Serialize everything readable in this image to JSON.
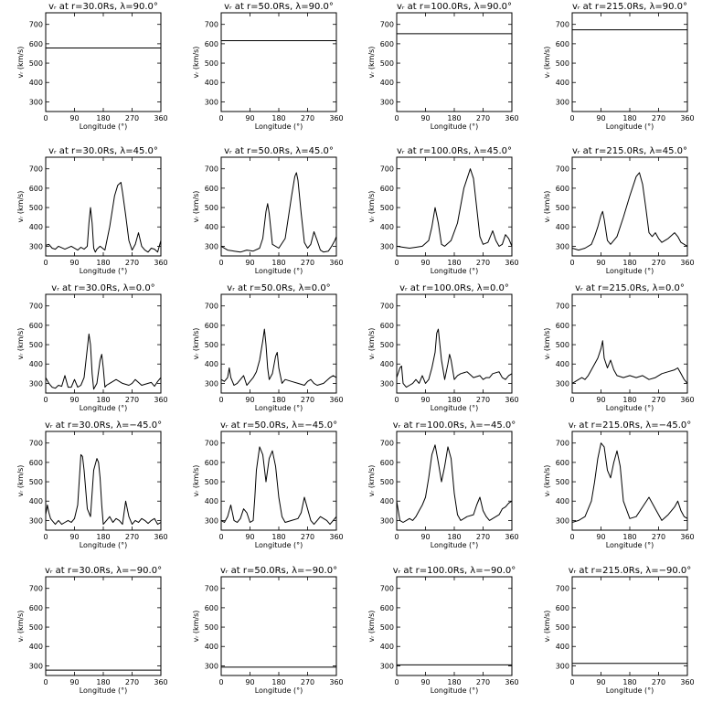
{
  "figure": {
    "xlabel": "Longitude (°)",
    "ylabel": "vᵣ (km/s)",
    "xticks": [
      0,
      90,
      180,
      270,
      360
    ],
    "yticks": [
      300,
      400,
      500,
      600,
      700
    ],
    "xlim": [
      0,
      360
    ],
    "ylim": [
      250,
      760
    ]
  },
  "chart_data": [
    {
      "type": "line",
      "title": "vᵣ at r=30.0Rs, λ=90.0°",
      "x": [
        0,
        360
      ],
      "y": [
        578,
        578
      ]
    },
    {
      "type": "line",
      "title": "vᵣ at r=50.0Rs, λ=90.0°",
      "x": [
        0,
        360
      ],
      "y": [
        616,
        616
      ]
    },
    {
      "type": "line",
      "title": "vᵣ at r=100.0Rs, λ=90.0°",
      "x": [
        0,
        360
      ],
      "y": [
        652,
        652
      ]
    },
    {
      "type": "line",
      "title": "vᵣ at r=215.0Rs, λ=90.0°",
      "x": [
        0,
        360
      ],
      "y": [
        672,
        672
      ]
    },
    {
      "type": "line",
      "title": "vᵣ at r=30.0Rs, λ=45.0°",
      "x": [
        0,
        10,
        20,
        30,
        40,
        60,
        80,
        100,
        110,
        120,
        130,
        135,
        140,
        145,
        150,
        155,
        160,
        170,
        185,
        200,
        215,
        225,
        235,
        240,
        250,
        260,
        270,
        280,
        290,
        300,
        310,
        320,
        330,
        340,
        350,
        360
      ],
      "y": [
        305,
        310,
        290,
        285,
        300,
        285,
        300,
        280,
        295,
        285,
        300,
        420,
        500,
        420,
        290,
        270,
        285,
        300,
        280,
        400,
        560,
        615,
        630,
        580,
        460,
        330,
        280,
        310,
        370,
        300,
        280,
        270,
        290,
        285,
        270,
        330
      ]
    },
    {
      "type": "line",
      "title": "vᵣ at r=50.0Rs, λ=45.0°",
      "x": [
        0,
        20,
        40,
        60,
        80,
        100,
        120,
        130,
        140,
        145,
        150,
        160,
        180,
        200,
        220,
        230,
        235,
        240,
        250,
        260,
        270,
        280,
        290,
        300,
        310,
        320,
        335,
        345,
        355,
        360
      ],
      "y": [
        300,
        280,
        275,
        270,
        280,
        275,
        290,
        340,
        480,
        520,
        470,
        310,
        290,
        340,
        560,
        660,
        680,
        640,
        470,
        320,
        290,
        310,
        375,
        330,
        280,
        270,
        275,
        300,
        330,
        350
      ]
    },
    {
      "type": "line",
      "title": "vᵣ at r=100.0Rs, λ=45.0°",
      "x": [
        0,
        20,
        40,
        60,
        80,
        100,
        110,
        120,
        130,
        140,
        150,
        170,
        190,
        210,
        230,
        240,
        250,
        260,
        270,
        285,
        300,
        310,
        320,
        330,
        340,
        350,
        360
      ],
      "y": [
        300,
        295,
        290,
        295,
        300,
        330,
        400,
        500,
        420,
        310,
        300,
        330,
        420,
        600,
        700,
        650,
        500,
        350,
        310,
        320,
        380,
        330,
        300,
        310,
        360,
        340,
        300
      ]
    },
    {
      "type": "line",
      "title": "vᵣ at r=215.0Rs, λ=45.0°",
      "x": [
        0,
        20,
        40,
        60,
        70,
        80,
        90,
        95,
        100,
        110,
        120,
        140,
        160,
        180,
        200,
        210,
        220,
        230,
        240,
        250,
        260,
        270,
        280,
        300,
        320,
        330,
        340,
        360
      ],
      "y": [
        290,
        280,
        290,
        310,
        350,
        400,
        460,
        480,
        440,
        330,
        310,
        350,
        450,
        560,
        660,
        680,
        620,
        500,
        370,
        350,
        370,
        340,
        320,
        340,
        370,
        350,
        320,
        300
      ]
    },
    {
      "type": "line",
      "title": "vᵣ at r=30.0Rs, λ=0.0°",
      "x": [
        0,
        10,
        20,
        30,
        40,
        50,
        60,
        70,
        80,
        90,
        100,
        110,
        120,
        130,
        135,
        140,
        145,
        150,
        160,
        170,
        175,
        180,
        185,
        190,
        200,
        220,
        240,
        260,
        270,
        280,
        300,
        320,
        330,
        340,
        350,
        360
      ],
      "y": [
        330,
        300,
        280,
        275,
        290,
        285,
        340,
        280,
        280,
        320,
        280,
        290,
        330,
        480,
        555,
        500,
        350,
        270,
        300,
        420,
        450,
        380,
        280,
        290,
        300,
        320,
        300,
        290,
        300,
        320,
        290,
        300,
        305,
        285,
        310,
        330
      ]
    },
    {
      "type": "line",
      "title": "vᵣ at r=50.0Rs, λ=0.0°",
      "x": [
        0,
        10,
        20,
        25,
        30,
        40,
        50,
        60,
        70,
        80,
        90,
        100,
        110,
        120,
        130,
        135,
        140,
        145,
        150,
        160,
        170,
        175,
        180,
        190,
        200,
        220,
        240,
        260,
        270,
        280,
        290,
        300,
        320,
        340,
        350,
        360
      ],
      "y": [
        320,
        310,
        330,
        380,
        330,
        290,
        300,
        320,
        340,
        290,
        310,
        330,
        360,
        420,
        520,
        580,
        500,
        380,
        320,
        350,
        440,
        460,
        380,
        300,
        320,
        310,
        300,
        290,
        310,
        320,
        300,
        290,
        300,
        330,
        340,
        330
      ]
    },
    {
      "type": "line",
      "title": "vᵣ at r=100.0Rs, λ=0.0°",
      "x": [
        0,
        10,
        15,
        20,
        30,
        40,
        50,
        60,
        70,
        80,
        90,
        100,
        110,
        120,
        125,
        130,
        140,
        150,
        160,
        165,
        170,
        180,
        190,
        200,
        220,
        240,
        260,
        270,
        280,
        290,
        300,
        320,
        330,
        340,
        350,
        360
      ],
      "y": [
        330,
        380,
        390,
        300,
        280,
        290,
        300,
        320,
        300,
        340,
        300,
        320,
        380,
        460,
        560,
        580,
        420,
        320,
        400,
        450,
        420,
        320,
        340,
        350,
        360,
        330,
        340,
        320,
        330,
        330,
        350,
        360,
        330,
        320,
        340,
        350
      ]
    },
    {
      "type": "line",
      "title": "vᵣ at r=215.0Rs, λ=0.0°",
      "x": [
        0,
        10,
        20,
        30,
        40,
        50,
        60,
        70,
        80,
        90,
        95,
        100,
        110,
        115,
        120,
        130,
        140,
        160,
        180,
        200,
        220,
        240,
        260,
        280,
        300,
        320,
        330,
        340,
        350,
        360
      ],
      "y": [
        300,
        310,
        320,
        330,
        320,
        340,
        370,
        400,
        430,
        480,
        520,
        430,
        380,
        400,
        420,
        370,
        340,
        330,
        340,
        330,
        340,
        320,
        330,
        350,
        360,
        370,
        380,
        350,
        320,
        300
      ]
    },
    {
      "type": "line",
      "title": "vᵣ at r=30.0Rs, λ=−45.0°",
      "x": [
        0,
        5,
        10,
        15,
        20,
        30,
        40,
        50,
        60,
        70,
        80,
        90,
        100,
        110,
        115,
        120,
        130,
        140,
        150,
        160,
        165,
        170,
        175,
        180,
        190,
        200,
        210,
        220,
        230,
        240,
        250,
        260,
        270,
        280,
        290,
        300,
        310,
        320,
        330,
        340,
        350,
        360
      ],
      "y": [
        330,
        380,
        340,
        310,
        300,
        280,
        300,
        280,
        290,
        300,
        290,
        310,
        380,
        640,
        630,
        560,
        360,
        320,
        560,
        620,
        600,
        520,
        380,
        280,
        300,
        320,
        290,
        310,
        300,
        280,
        400,
        320,
        280,
        300,
        290,
        310,
        300,
        285,
        300,
        310,
        280,
        290
      ]
    },
    {
      "type": "line",
      "title": "vᵣ at r=50.0Rs, λ=−45.0°",
      "x": [
        0,
        10,
        20,
        30,
        40,
        50,
        60,
        70,
        80,
        90,
        100,
        105,
        110,
        120,
        130,
        140,
        150,
        160,
        170,
        180,
        190,
        200,
        220,
        240,
        250,
        260,
        270,
        280,
        290,
        300,
        310,
        320,
        330,
        340,
        350,
        360
      ],
      "y": [
        300,
        290,
        320,
        380,
        300,
        290,
        310,
        360,
        340,
        290,
        300,
        420,
        560,
        680,
        640,
        500,
        620,
        660,
        580,
        420,
        320,
        290,
        300,
        310,
        340,
        420,
        360,
        300,
        280,
        300,
        320,
        310,
        300,
        280,
        300,
        320
      ]
    },
    {
      "type": "line",
      "title": "vᵣ at r=100.0Rs, λ=−45.0°",
      "x": [
        0,
        10,
        20,
        30,
        40,
        50,
        60,
        70,
        80,
        90,
        100,
        110,
        120,
        130,
        140,
        150,
        160,
        170,
        180,
        190,
        200,
        220,
        240,
        250,
        260,
        270,
        280,
        290,
        300,
        310,
        320,
        330,
        340,
        350,
        360
      ],
      "y": [
        400,
        300,
        290,
        300,
        310,
        300,
        320,
        350,
        380,
        420,
        520,
        640,
        690,
        600,
        500,
        580,
        680,
        620,
        440,
        330,
        300,
        320,
        330,
        380,
        420,
        350,
        320,
        300,
        310,
        320,
        330,
        360,
        370,
        390,
        400
      ]
    },
    {
      "type": "line",
      "title": "vᵣ at r=215.0Rs, λ=−45.0°",
      "x": [
        0,
        20,
        40,
        60,
        70,
        80,
        90,
        100,
        110,
        120,
        130,
        140,
        150,
        160,
        180,
        200,
        220,
        240,
        260,
        280,
        300,
        320,
        330,
        340,
        350,
        360
      ],
      "y": [
        290,
        300,
        320,
        400,
        500,
        620,
        700,
        680,
        560,
        520,
        600,
        660,
        580,
        400,
        310,
        320,
        370,
        420,
        360,
        300,
        330,
        370,
        400,
        350,
        320,
        310
      ]
    },
    {
      "type": "line",
      "title": "vᵣ at r=30.0Rs, λ=−90.0°",
      "x": [
        0,
        360
      ],
      "y": [
        278,
        278
      ]
    },
    {
      "type": "line",
      "title": "vᵣ at r=50.0Rs, λ=−90.0°",
      "x": [
        0,
        360
      ],
      "y": [
        293,
        293
      ]
    },
    {
      "type": "line",
      "title": "vᵣ at r=100.0Rs, λ=−90.0°",
      "x": [
        0,
        360
      ],
      "y": [
        305,
        305
      ]
    },
    {
      "type": "line",
      "title": "vᵣ at r=215.0Rs, λ=−90.0°",
      "x": [
        0,
        360
      ],
      "y": [
        313,
        313
      ]
    }
  ]
}
